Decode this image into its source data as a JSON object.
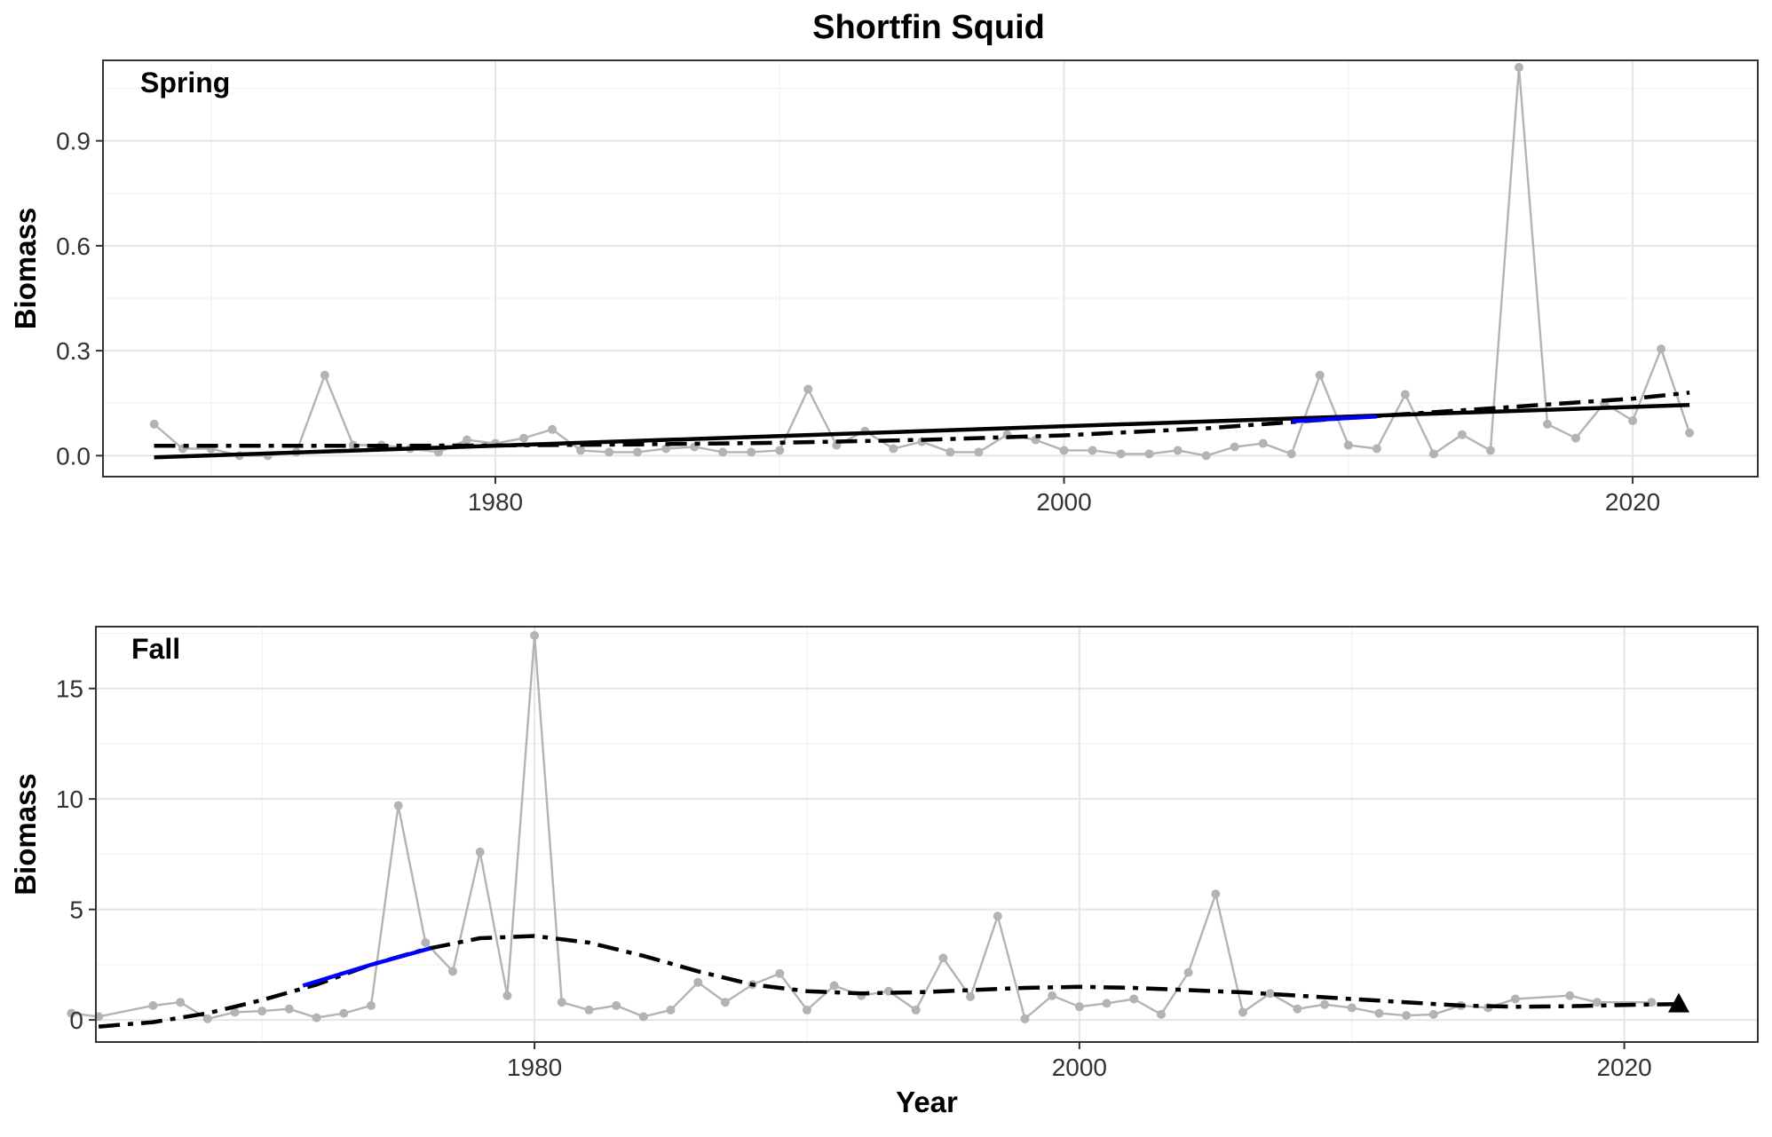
{
  "title": "Shortfin Squid",
  "xlabel": "Year",
  "colors": {
    "points": "#b3b3b3",
    "fit": "#000000",
    "highlight": "#0000ff",
    "grid_major": "#e5e5e5",
    "grid_minor": "#f2f2f2",
    "panel_border": "#333333"
  },
  "chart_data": [
    {
      "type": "line",
      "panel": "Spring",
      "ylabel": "Biomass",
      "xlim": [
        1966.2,
        2024.4
      ],
      "ylim": [
        -0.06,
        1.13
      ],
      "x_ticks": [
        1980,
        2000,
        2020
      ],
      "y_ticks": [
        0.0,
        0.3,
        0.6,
        0.9
      ],
      "y_tick_labels": [
        "0.0",
        "0.3",
        "0.6",
        "0.9"
      ],
      "grid": true,
      "series": [
        {
          "role": "observed",
          "x": [
            1968,
            1969,
            1970,
            1971,
            1972,
            1973,
            1974,
            1975,
            1976,
            1977,
            1978,
            1979,
            1980,
            1981,
            1982,
            1983,
            1984,
            1985,
            1986,
            1987,
            1988,
            1989,
            1990,
            1991,
            1992,
            1993,
            1994,
            1995,
            1996,
            1997,
            1998,
            1999,
            2000,
            2001,
            2002,
            2003,
            2004,
            2005,
            2006,
            2007,
            2008,
            2009,
            2010,
            2011,
            2012,
            2013,
            2014,
            2015,
            2016,
            2017,
            2018,
            2019,
            2020,
            2021,
            2022
          ],
          "y": [
            0.09,
            0.02,
            0.02,
            0.0,
            0.0,
            0.01,
            0.23,
            0.03,
            0.03,
            0.02,
            0.01,
            0.045,
            0.035,
            0.05,
            0.075,
            0.015,
            0.01,
            0.01,
            0.02,
            0.025,
            0.01,
            0.01,
            0.015,
            0.19,
            0.03,
            0.07,
            0.02,
            0.04,
            0.01,
            0.01,
            0.06,
            0.045,
            0.015,
            0.015,
            0.005,
            0.005,
            0.015,
            0.0,
            0.025,
            0.035,
            0.005,
            0.23,
            0.03,
            0.02,
            0.175,
            0.005,
            0.06,
            0.015,
            1.11,
            0.09,
            0.05,
            0.15,
            0.1,
            0.305,
            0.065
          ]
        },
        {
          "role": "linear-trend",
          "x": [
            1968,
            2022
          ],
          "y": [
            -0.005,
            0.145
          ]
        },
        {
          "role": "smooth-trend",
          "x": [
            1968,
            1975,
            1980,
            1985,
            1990,
            1995,
            2000,
            2005,
            2010,
            2015,
            2020,
            2022
          ],
          "y": [
            0.028,
            0.028,
            0.029,
            0.032,
            0.037,
            0.045,
            0.058,
            0.078,
            0.108,
            0.135,
            0.163,
            0.18
          ]
        },
        {
          "role": "significant-segment",
          "x": [
            2008,
            2011
          ],
          "y": [
            0.098,
            0.112
          ]
        }
      ]
    },
    {
      "type": "line",
      "panel": "Fall",
      "ylabel": "Biomass",
      "xlim": [
        1963.9,
        2024.9
      ],
      "ylim": [
        -1.0,
        17.8
      ],
      "x_ticks": [
        1980,
        2000,
        2020
      ],
      "y_ticks": [
        0,
        5,
        10,
        15
      ],
      "y_tick_labels": [
        "0",
        "5",
        "10",
        "15"
      ],
      "grid": true,
      "series": [
        {
          "role": "observed",
          "x": [
            1963,
            1964,
            1966,
            1967,
            1968,
            1969,
            1970,
            1971,
            1972,
            1973,
            1974,
            1975,
            1976,
            1977,
            1978,
            1979,
            1980,
            1981,
            1982,
            1983,
            1984,
            1985,
            1986,
            1987,
            1988,
            1989,
            1990,
            1991,
            1992,
            1993,
            1994,
            1995,
            1996,
            1997,
            1998,
            1999,
            2000,
            2001,
            2002,
            2003,
            2004,
            2005,
            2006,
            2007,
            2008,
            2009,
            2010,
            2011,
            2012,
            2013,
            2014,
            2015,
            2016,
            2018,
            2019,
            2021
          ],
          "y": [
            0.3,
            0.15,
            0.65,
            0.8,
            0.05,
            0.35,
            0.4,
            0.5,
            0.1,
            0.3,
            0.65,
            9.7,
            3.5,
            2.2,
            7.6,
            1.1,
            17.4,
            0.8,
            0.45,
            0.65,
            0.15,
            0.45,
            1.7,
            0.8,
            1.6,
            2.1,
            0.45,
            1.55,
            1.1,
            1.3,
            0.45,
            2.8,
            1.05,
            4.7,
            0.05,
            1.1,
            0.6,
            0.75,
            0.95,
            0.25,
            2.15,
            5.7,
            0.35,
            1.2,
            0.5,
            0.7,
            0.55,
            0.3,
            0.2,
            0.25,
            0.65,
            0.55,
            0.95,
            1.1,
            0.8,
            0.8
          ]
        },
        {
          "role": "smooth-trend",
          "x": [
            1964,
            1966,
            1968,
            1970,
            1972,
            1974,
            1976,
            1978,
            1980,
            1982,
            1984,
            1986,
            1988,
            1990,
            1992,
            1994,
            1996,
            1998,
            2000,
            2002,
            2004,
            2006,
            2008,
            2010,
            2012,
            2014,
            2016,
            2018,
            2020,
            2022
          ],
          "y": [
            -0.3,
            -0.1,
            0.3,
            0.9,
            1.6,
            2.5,
            3.2,
            3.7,
            3.8,
            3.5,
            2.9,
            2.2,
            1.6,
            1.3,
            1.2,
            1.25,
            1.35,
            1.45,
            1.5,
            1.45,
            1.35,
            1.25,
            1.1,
            0.95,
            0.8,
            0.65,
            0.6,
            0.62,
            0.68,
            0.72
          ]
        },
        {
          "role": "significant-segment",
          "x": [
            1971.5,
            1974,
            1976.2
          ],
          "y": [
            1.55,
            2.5,
            3.25
          ]
        },
        {
          "role": "last-year-marker",
          "marker": "triangle",
          "x": [
            2022
          ],
          "y": [
            0.7
          ]
        }
      ]
    }
  ]
}
